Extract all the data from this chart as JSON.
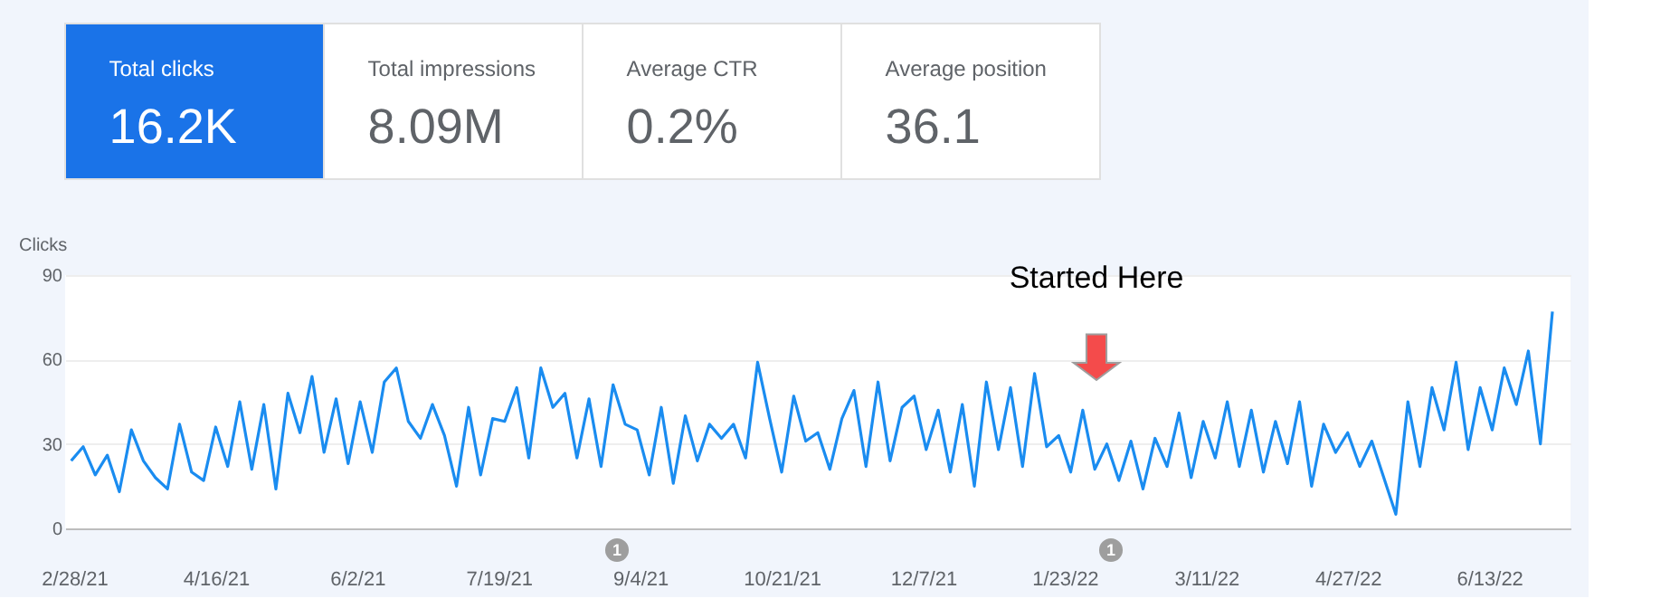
{
  "chart_data": [
    {
      "type": "other",
      "annotations": [
        "Total clicks",
        "16.2K",
        "Total impressions",
        "8.09M",
        "Average CTR",
        "0.2%",
        "Average position",
        "36.1"
      ]
    },
    {
      "type": "line",
      "ylabel": "Clicks",
      "color": "#1a8cf0",
      "marker": "none",
      "line_style": "solid",
      "grid": "y",
      "x": [
        "2021-02-27",
        "2021-03-03",
        "2021-03-07",
        "2021-03-11",
        "2021-03-15",
        "2021-03-19",
        "2021-03-23",
        "2021-03-27",
        "2021-03-31",
        "2021-04-04",
        "2021-04-08",
        "2021-04-12",
        "2021-04-16",
        "2021-04-20",
        "2021-04-24",
        "2021-04-28",
        "2021-05-02",
        "2021-05-06",
        "2021-05-10",
        "2021-05-14",
        "2021-05-18",
        "2021-05-22",
        "2021-05-26",
        "2021-05-30",
        "2021-06-03",
        "2021-06-07",
        "2021-06-11",
        "2021-06-15",
        "2021-06-19",
        "2021-06-23",
        "2021-06-27",
        "2021-07-01",
        "2021-07-05",
        "2021-07-09",
        "2021-07-13",
        "2021-07-17",
        "2021-07-21",
        "2021-07-25",
        "2021-07-29",
        "2021-08-02",
        "2021-08-06",
        "2021-08-10",
        "2021-08-14",
        "2021-08-18",
        "2021-08-22",
        "2021-08-26",
        "2021-08-30",
        "2021-09-03",
        "2021-09-07",
        "2021-09-11",
        "2021-09-15",
        "2021-09-19",
        "2021-09-23",
        "2021-09-27",
        "2021-10-01",
        "2021-10-05",
        "2021-10-09",
        "2021-10-13",
        "2021-10-17",
        "2021-10-21",
        "2021-10-25",
        "2021-10-29",
        "2021-11-02",
        "2021-11-06",
        "2021-11-10",
        "2021-11-14",
        "2021-11-18",
        "2021-11-22",
        "2021-11-26",
        "2021-11-30",
        "2021-12-04",
        "2021-12-08",
        "2021-12-12",
        "2021-12-16",
        "2021-12-20",
        "2021-12-24",
        "2021-12-28",
        "2022-01-01",
        "2022-01-05",
        "2022-01-09",
        "2022-01-13",
        "2022-01-17",
        "2022-01-21",
        "2022-01-25",
        "2022-01-29",
        "2022-02-02",
        "2022-02-06",
        "2022-02-10",
        "2022-02-14",
        "2022-02-18",
        "2022-02-22",
        "2022-02-26",
        "2022-03-02",
        "2022-03-06",
        "2022-03-10",
        "2022-03-14",
        "2022-03-18",
        "2022-03-22",
        "2022-03-26",
        "2022-03-30",
        "2022-04-03",
        "2022-04-07",
        "2022-04-11",
        "2022-04-15",
        "2022-04-19",
        "2022-04-23",
        "2022-04-27",
        "2022-05-01",
        "2022-05-05",
        "2022-05-09",
        "2022-05-13",
        "2022-05-17",
        "2022-05-21",
        "2022-05-25",
        "2022-05-29",
        "2022-06-02",
        "2022-06-06",
        "2022-06-10",
        "2022-06-14",
        "2022-06-18",
        "2022-06-22",
        "2022-06-26",
        "2022-06-30",
        "2022-07-04"
      ],
      "values": [
        24,
        29,
        19,
        26,
        13,
        35,
        24,
        18,
        14,
        37,
        20,
        17,
        36,
        22,
        45,
        21,
        44,
        14,
        48,
        34,
        54,
        27,
        46,
        23,
        45,
        27,
        52,
        57,
        38,
        32,
        44,
        33,
        15,
        43,
        19,
        39,
        38,
        50,
        25,
        57,
        43,
        48,
        25,
        46,
        22,
        51,
        37,
        35,
        19,
        43,
        16,
        40,
        24,
        37,
        32,
        37,
        25,
        59,
        39,
        20,
        47,
        31,
        34,
        21,
        39,
        49,
        22,
        52,
        24,
        43,
        47,
        28,
        42,
        20,
        44,
        15,
        52,
        28,
        50,
        22,
        55,
        29,
        33,
        20,
        42,
        21,
        30,
        17,
        31,
        14,
        32,
        22,
        41,
        18,
        38,
        25,
        45,
        22,
        42,
        20,
        38,
        23,
        45,
        15,
        37,
        27,
        34,
        22,
        31,
        18,
        5,
        45,
        22,
        50,
        35,
        59,
        28,
        50,
        35,
        57,
        44,
        63,
        30,
        77
      ],
      "xlim": [
        "2021-02-25",
        "2022-07-10"
      ],
      "xticks": [
        {
          "value": "2021-02-28",
          "label": "2/28/21"
        },
        {
          "value": "2021-04-16",
          "label": "4/16/21"
        },
        {
          "value": "2021-06-02",
          "label": "6/2/21"
        },
        {
          "value": "2021-07-19",
          "label": "7/19/21"
        },
        {
          "value": "2021-09-04",
          "label": "9/4/21"
        },
        {
          "value": "2021-10-21",
          "label": "10/21/21"
        },
        {
          "value": "2021-12-07",
          "label": "12/7/21"
        },
        {
          "value": "2022-01-23",
          "label": "1/23/22"
        },
        {
          "value": "2022-03-11",
          "label": "3/11/22"
        },
        {
          "value": "2022-04-27",
          "label": "4/27/22"
        },
        {
          "value": "2022-06-13",
          "label": "6/13/22"
        }
      ],
      "ylim": [
        0,
        90
      ],
      "yticks": [
        0,
        30,
        60,
        90
      ],
      "annotations": [
        "Started Here",
        "1",
        "1"
      ]
    }
  ]
}
